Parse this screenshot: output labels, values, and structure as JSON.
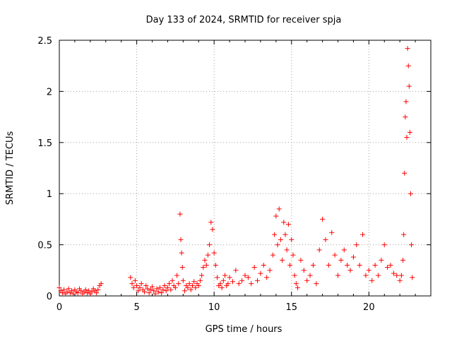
{
  "chart_data": {
    "type": "scatter",
    "title": "Day 133 of 2024, SRMTID for receiver spja",
    "xlabel": "GPS time / hours",
    "ylabel": "SRMTID / TECUs",
    "xlim": [
      0,
      24
    ],
    "ylim": [
      0,
      2.5
    ],
    "xticks": [
      0,
      5,
      10,
      15,
      20
    ],
    "xtick_labels": [
      "0",
      "5",
      "10",
      "15",
      "20"
    ],
    "yticks": [
      0,
      0.5,
      1,
      1.5,
      2,
      2.5
    ],
    "ytick_labels": [
      "0",
      "0.5",
      "1",
      "1.5",
      "2",
      "2.5"
    ],
    "grid": true,
    "marker": "+",
    "color": "#ff0000",
    "series": [
      {
        "name": "SRMTID",
        "x": [
          0.0,
          0.1,
          0.2,
          0.3,
          0.4,
          0.5,
          0.6,
          0.7,
          0.8,
          0.9,
          1.0,
          1.1,
          1.2,
          1.3,
          1.4,
          1.5,
          1.6,
          1.7,
          1.8,
          1.9,
          2.0,
          2.1,
          2.2,
          2.3,
          2.4,
          2.5,
          2.6,
          2.7,
          4.6,
          4.7,
          4.8,
          4.9,
          5.0,
          5.1,
          5.2,
          5.3,
          5.4,
          5.5,
          5.6,
          5.7,
          5.8,
          5.9,
          6.0,
          6.1,
          6.2,
          6.3,
          6.4,
          6.5,
          6.6,
          6.7,
          6.8,
          6.9,
          7.0,
          7.1,
          7.2,
          7.3,
          7.4,
          7.5,
          7.6,
          7.7,
          7.8,
          7.85,
          7.9,
          7.95,
          8.0,
          8.1,
          8.2,
          8.3,
          8.4,
          8.5,
          8.6,
          8.7,
          8.8,
          8.9,
          9.0,
          9.1,
          9.2,
          9.3,
          9.4,
          9.5,
          9.6,
          9.7,
          9.8,
          9.9,
          10.0,
          10.1,
          10.2,
          10.3,
          10.4,
          10.5,
          10.6,
          10.7,
          10.8,
          10.9,
          11.0,
          11.2,
          11.4,
          11.6,
          11.8,
          12.0,
          12.2,
          12.4,
          12.6,
          12.8,
          13.0,
          13.2,
          13.4,
          13.6,
          13.8,
          13.9,
          14.0,
          14.1,
          14.2,
          14.3,
          14.4,
          14.5,
          14.6,
          14.7,
          14.8,
          14.9,
          15.0,
          15.1,
          15.2,
          15.3,
          15.4,
          15.6,
          15.8,
          16.0,
          16.2,
          16.4,
          16.6,
          16.8,
          17.0,
          17.2,
          17.4,
          17.6,
          17.8,
          18.0,
          18.2,
          18.4,
          18.6,
          18.8,
          19.0,
          19.2,
          19.4,
          19.6,
          19.8,
          20.0,
          20.2,
          20.4,
          20.6,
          20.8,
          21.0,
          21.2,
          21.4,
          21.6,
          21.8,
          22.0,
          22.1,
          22.2,
          22.25,
          22.3,
          22.35,
          22.4,
          22.45,
          22.5,
          22.55,
          22.6,
          22.65,
          22.7,
          22.75,
          22.8
        ],
        "y": [
          0.08,
          0.05,
          0.03,
          0.06,
          0.02,
          0.04,
          0.07,
          0.03,
          0.05,
          0.02,
          0.06,
          0.04,
          0.03,
          0.07,
          0.05,
          0.02,
          0.04,
          0.06,
          0.03,
          0.05,
          0.02,
          0.04,
          0.07,
          0.05,
          0.03,
          0.06,
          0.1,
          0.12,
          0.18,
          0.12,
          0.08,
          0.15,
          0.1,
          0.05,
          0.08,
          0.12,
          0.06,
          0.04,
          0.1,
          0.07,
          0.03,
          0.06,
          0.09,
          0.05,
          0.02,
          0.07,
          0.04,
          0.08,
          0.03,
          0.06,
          0.1,
          0.05,
          0.08,
          0.12,
          0.06,
          0.15,
          0.1,
          0.08,
          0.2,
          0.12,
          0.8,
          0.55,
          0.42,
          0.28,
          0.15,
          0.05,
          0.1,
          0.08,
          0.12,
          0.06,
          0.1,
          0.14,
          0.08,
          0.12,
          0.1,
          0.15,
          0.2,
          0.28,
          0.35,
          0.3,
          0.4,
          0.5,
          0.72,
          0.65,
          0.42,
          0.3,
          0.18,
          0.1,
          0.12,
          0.08,
          0.15,
          0.2,
          0.1,
          0.12,
          0.18,
          0.14,
          0.25,
          0.12,
          0.15,
          0.2,
          0.18,
          0.12,
          0.28,
          0.15,
          0.22,
          0.3,
          0.18,
          0.25,
          0.4,
          0.6,
          0.78,
          0.5,
          0.85,
          0.55,
          0.35,
          0.72,
          0.6,
          0.45,
          0.7,
          0.3,
          0.55,
          0.4,
          0.2,
          0.12,
          0.08,
          0.35,
          0.25,
          0.15,
          0.2,
          0.3,
          0.12,
          0.45,
          0.75,
          0.55,
          0.3,
          0.62,
          0.4,
          0.2,
          0.35,
          0.45,
          0.3,
          0.25,
          0.38,
          0.5,
          0.3,
          0.6,
          0.2,
          0.25,
          0.15,
          0.3,
          0.2,
          0.35,
          0.5,
          0.28,
          0.3,
          0.22,
          0.2,
          0.15,
          0.2,
          0.35,
          0.6,
          1.2,
          1.75,
          1.9,
          1.55,
          2.42,
          2.25,
          2.05,
          1.6,
          1.0,
          0.5,
          0.18
        ]
      }
    ]
  }
}
